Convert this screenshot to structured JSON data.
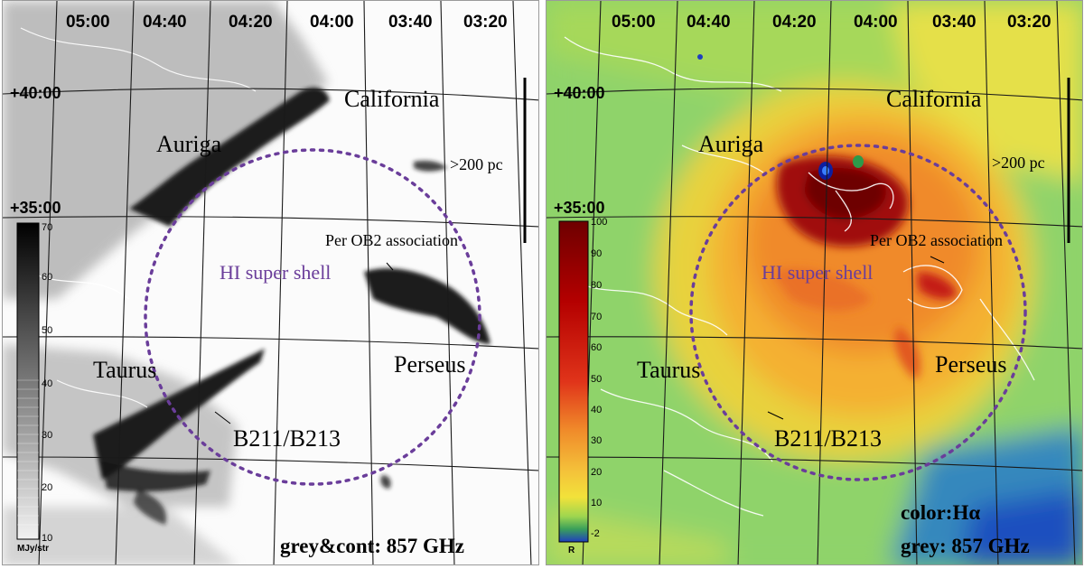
{
  "ra_ticks": [
    "05:00",
    "04:40",
    "04:20",
    "04:00",
    "03:40",
    "03:20"
  ],
  "dec_ticks": [
    "+40:00",
    "+35:00"
  ],
  "regions": {
    "california": "California",
    "auriga": "Auriga",
    "taurus": "Taurus",
    "perseus": "Perseus",
    "b211": "B211/B213",
    "per_ob2": "Per OB2 association",
    "hi_shell": "HI super shell"
  },
  "scale_bar": {
    "label": ">200 pc"
  },
  "left_panel": {
    "colorbar_ticks": [
      "70",
      "60",
      "50",
      "40",
      "30",
      "20",
      "10"
    ],
    "colorbar_unit": "MJy/str",
    "corner_label": "grey&cont: 857 GHz"
  },
  "right_panel": {
    "colorbar_ticks": [
      "100",
      "90",
      "80",
      "70",
      "60",
      "50",
      "40",
      "30",
      "20",
      "10",
      "-2"
    ],
    "colorbar_unit": "R",
    "corner_label_line1": "color:Hα",
    "corner_label_line2": "grey: 857 GHz"
  },
  "colors": {
    "shell_circle": "#6a3d9a",
    "halpha_low": "#1f3fbf",
    "halpha_mid": "#f2e23a",
    "halpha_high": "#6e0000"
  }
}
